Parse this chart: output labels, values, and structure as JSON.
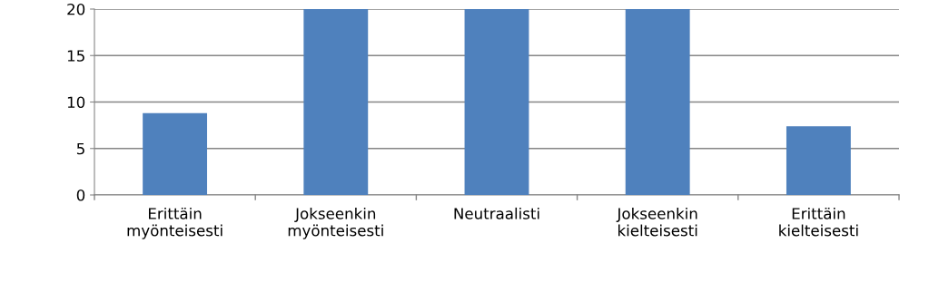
{
  "chart_data": {
    "type": "bar",
    "categories": [
      "Erittäin\nmyönteisesti",
      "Jokseenkin\nmyönteisesti",
      "Neutraalisti",
      "Jokseenkin\nkielteisesti",
      "Erittäin\nkielteisesti"
    ],
    "values": [
      8.8,
      20,
      20,
      20,
      7.4
    ],
    "color": "#4f81bd",
    "ylim": [
      0,
      20
    ],
    "yticks": [
      0,
      5,
      10,
      15,
      20
    ],
    "grid": "y"
  }
}
